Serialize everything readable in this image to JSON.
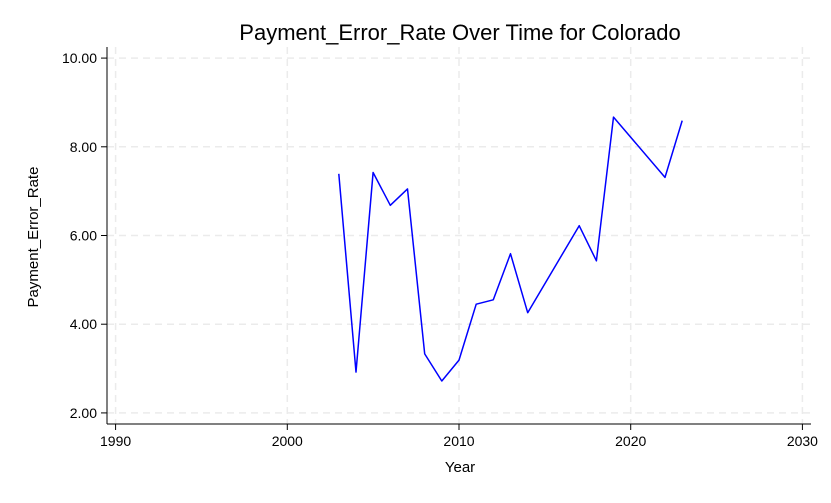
{
  "chart_data": {
    "type": "line",
    "title": "Payment_Error_Rate Over Time for Colorado",
    "xlabel": "Year",
    "ylabel": "Payment_Error_Rate",
    "xlim": [
      1989.5,
      2030.5
    ],
    "ylim": [
      1.75,
      10.25
    ],
    "x_ticks": [
      1990,
      2000,
      2010,
      2020,
      2030
    ],
    "y_ticks": [
      2,
      4,
      6,
      8,
      10
    ],
    "x_tick_labels": [
      "1990",
      "2000",
      "2010",
      "2020",
      "2030"
    ],
    "y_tick_labels": [
      "2.00",
      "4.00",
      "6.00",
      "8.00",
      "10.00"
    ],
    "grid": true,
    "legend": "none",
    "series": [
      {
        "color": "#0000ff",
        "x": [
          2003,
          2004,
          2005,
          2006,
          2007,
          2008,
          2009,
          2010,
          2011,
          2012,
          2013,
          2014,
          2017,
          2018,
          2019,
          2022,
          2023
        ],
        "y": [
          7.39,
          2.92,
          7.42,
          6.68,
          7.05,
          3.33,
          2.72,
          3.19,
          4.45,
          4.55,
          5.59,
          4.26,
          6.22,
          5.43,
          8.67,
          7.31,
          8.59
        ]
      }
    ]
  }
}
